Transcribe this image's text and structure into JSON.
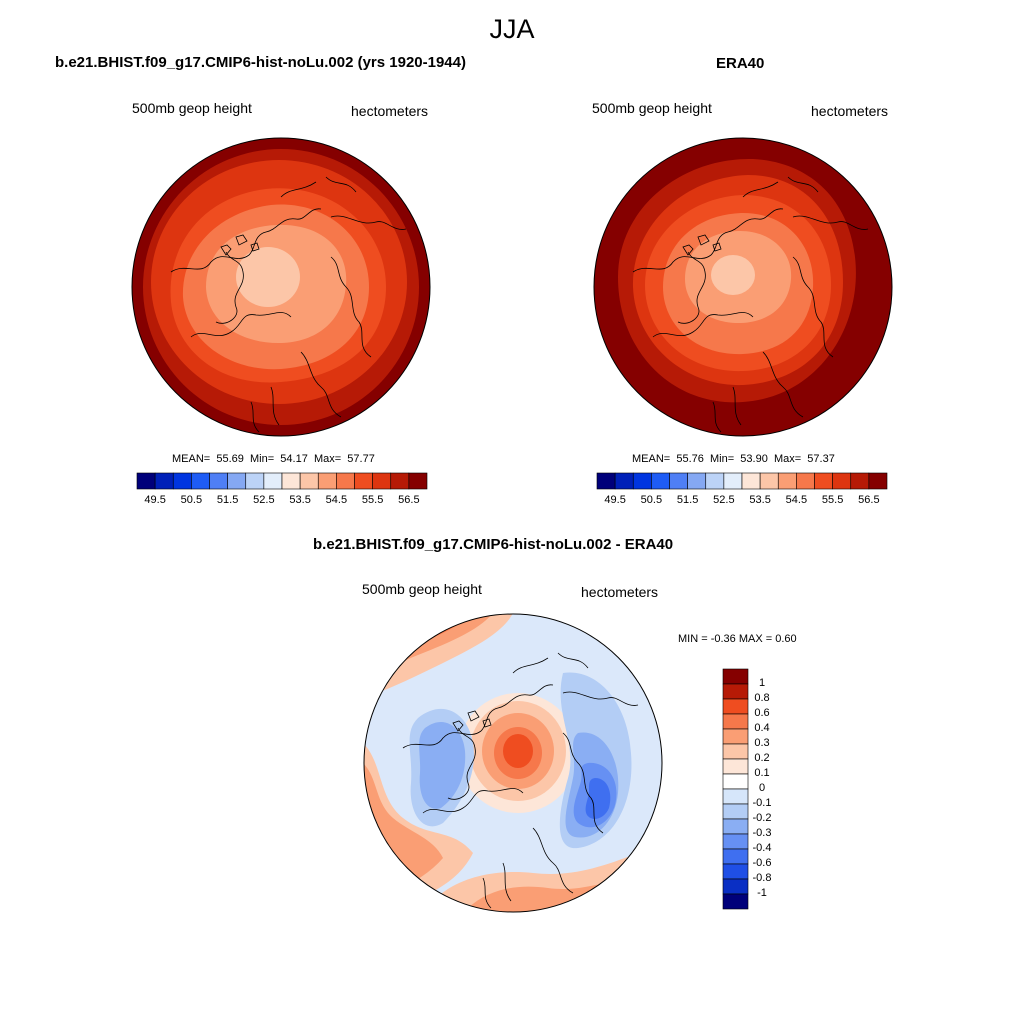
{
  "figure": {
    "title": "JJA"
  },
  "panels": [
    {
      "title": "b.e21.BHIST.f09_g17.CMIP6-hist-noLu.002 (yrs 1920-1944)",
      "left_label": "500mb geop height",
      "right_label": "hectometers",
      "stats": {
        "mean_label": "MEAN=",
        "mean": "55.69",
        "min_label": "Min=",
        "min": "54.17",
        "max_label": "Max=",
        "max": "57.77"
      }
    },
    {
      "title": "ERA40",
      "left_label": "500mb geop height",
      "right_label": "hectometers",
      "stats": {
        "mean_label": "MEAN=",
        "mean": "55.76",
        "min_label": "Min=",
        "min": "53.90",
        "max_label": "Max=",
        "max": "57.37"
      }
    },
    {
      "title": "b.e21.BHIST.f09_g17.CMIP6-hist-noLu.002 - ERA40",
      "left_label": "500mb geop height",
      "right_label": "hectometers",
      "stats": {
        "text": "MIN =  -0.36 MAX =   0.60"
      }
    }
  ],
  "colorbars": {
    "absolute": {
      "colors": [
        "#00007a",
        "#0020b8",
        "#0035e0",
        "#1e5cf5",
        "#4f7ff5",
        "#85a8f3",
        "#bcd3f7",
        "#e3eefb",
        "#fde6d8",
        "#fcc6a8",
        "#fa9e74",
        "#f6784b",
        "#ef4d20",
        "#dd3510",
        "#b61a06",
        "#850000"
      ],
      "labels": [
        "49.5",
        "50.5",
        "51.5",
        "52.5",
        "53.5",
        "54.5",
        "55.5",
        "56.5"
      ]
    },
    "difference": {
      "colors": [
        "#850000",
        "#b61a06",
        "#ef4d20",
        "#f6784b",
        "#fa9e74",
        "#fcc6a8",
        "#fde6d8",
        "#ffffff",
        "#d6e6fa",
        "#b3cdf5",
        "#8aaef3",
        "#6690f3",
        "#3f6ff0",
        "#1f4fe6",
        "#0a2fc4",
        "#00007a"
      ],
      "labels": [
        "1",
        "0.8",
        "0.6",
        "0.4",
        "0.3",
        "0.2",
        "0.1",
        "0",
        "-0.1",
        "-0.2",
        "-0.3",
        "-0.4",
        "-0.6",
        "-0.8",
        "-1"
      ]
    }
  },
  "map_fields": {
    "absolute_levels": [
      "#850000",
      "#b61a06",
      "#dd3510",
      "#ef4d20",
      "#f6784b",
      "#fa9e74",
      "#fcc6a8"
    ],
    "difference_background": "#dbe8fa",
    "difference_patches": {
      "positive": [
        "#f6784b",
        "#fa9e74",
        "#fcc6a8",
        "#fde6d8",
        "#ef4d20"
      ],
      "negative": [
        "#b3cdf5",
        "#8aaef3",
        "#6690f3",
        "#3f6ff0"
      ]
    }
  }
}
